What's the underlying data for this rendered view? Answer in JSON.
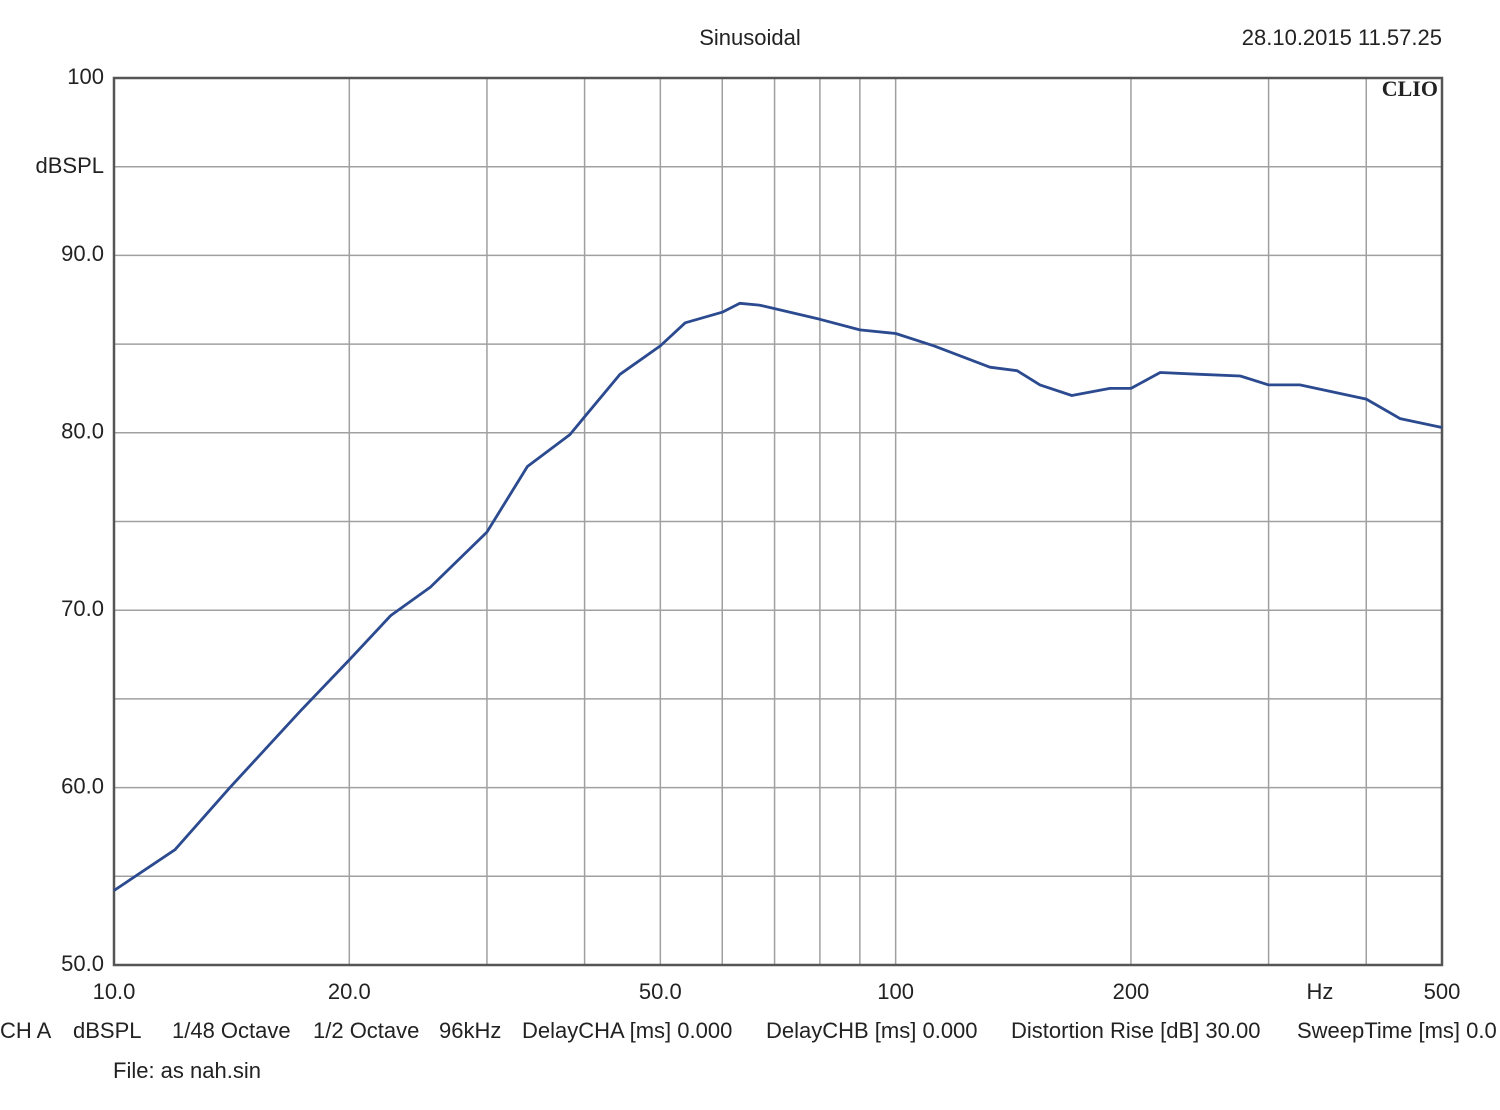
{
  "chart_data": {
    "type": "line",
    "title": "Sinusoidal",
    "timestamp": "28.10.2015 11.57.25",
    "brand": "CLIO",
    "y_label": "dBSPL",
    "x_label": "Hz",
    "x_scale": "log",
    "grid": true,
    "xlim": [
      10,
      500
    ],
    "ylim": [
      50,
      100
    ],
    "xticks": [
      {
        "value": 10,
        "label": "10.0"
      },
      {
        "value": 20,
        "label": "20.0"
      },
      {
        "value": 50,
        "label": "50.0"
      },
      100,
      200,
      500
    ],
    "yticks": [
      {
        "value": 50,
        "label": "50.0"
      },
      {
        "value": 60,
        "label": "60.0"
      },
      {
        "value": 70,
        "label": "70.0"
      },
      {
        "value": 80,
        "label": "80.0"
      },
      {
        "value": 90,
        "label": "90.0"
      },
      100
    ],
    "x_minor_grid": [
      30,
      40,
      60,
      70,
      80,
      90,
      300,
      400
    ],
    "y_minor_grid": [
      55,
      65,
      75,
      85,
      95
    ],
    "series": [
      {
        "color": "#2b4a8f",
        "x": [
          10,
          11.97,
          14.07,
          17.3,
          20,
          22.6,
          25.4,
          30,
          33.8,
          38.3,
          40,
          44.4,
          50,
          53.8,
          60,
          63.2,
          66.9,
          70,
          80,
          90,
          100,
          112,
          132,
          143,
          153,
          168,
          188,
          200,
          218,
          245,
          276,
          300,
          329,
          400,
          442,
          500
        ],
        "values": [
          54.2,
          56.5,
          60.0,
          64.3,
          67.2,
          69.7,
          71.3,
          74.4,
          78.1,
          79.9,
          80.9,
          83.3,
          84.9,
          86.2,
          86.8,
          87.3,
          87.2,
          87.0,
          86.4,
          85.8,
          85.6,
          84.9,
          83.7,
          83.5,
          82.7,
          82.1,
          82.5,
          82.5,
          83.4,
          83.3,
          83.2,
          82.7,
          82.7,
          81.9,
          80.8,
          80.3
        ]
      }
    ],
    "settings": [
      "CH A",
      "dBSPL",
      "1/48 Octave",
      "1/2 Octave",
      "96kHz",
      "DelayCHA [ms] 0.000",
      "DelayCHB [ms] 0.000",
      "Distortion Rise [dB] 30.00",
      "SweepTime [ms] 0.0"
    ],
    "file_label": "File: as nah.sin"
  }
}
